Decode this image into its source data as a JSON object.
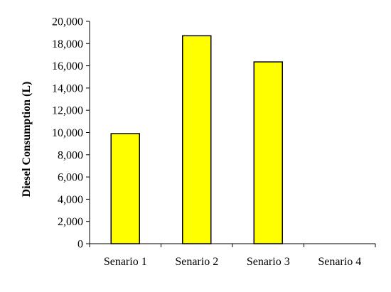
{
  "chart_data": {
    "type": "bar",
    "title": "",
    "xlabel": "",
    "ylabel": "Diesel Consumption (L)",
    "categories": [
      "Senario 1",
      "Senario 2",
      "Senario 3",
      "Senario 4"
    ],
    "values": [
      9900,
      18700,
      16350,
      0
    ],
    "ylim": [
      0,
      20000
    ],
    "yticks": [
      0,
      2000,
      4000,
      6000,
      8000,
      10000,
      12000,
      14000,
      16000,
      18000,
      20000
    ],
    "ytick_labels": [
      "0",
      "2,000",
      "4,000",
      "6,000",
      "8,000",
      "10,000",
      "12,000",
      "14,000",
      "16,000",
      "18,000",
      "20,000"
    ],
    "grid": false,
    "legend": "none",
    "colors": {
      "bar_fill": "#FFFF00",
      "bar_stroke": "#000000",
      "axis": "#000000"
    }
  }
}
